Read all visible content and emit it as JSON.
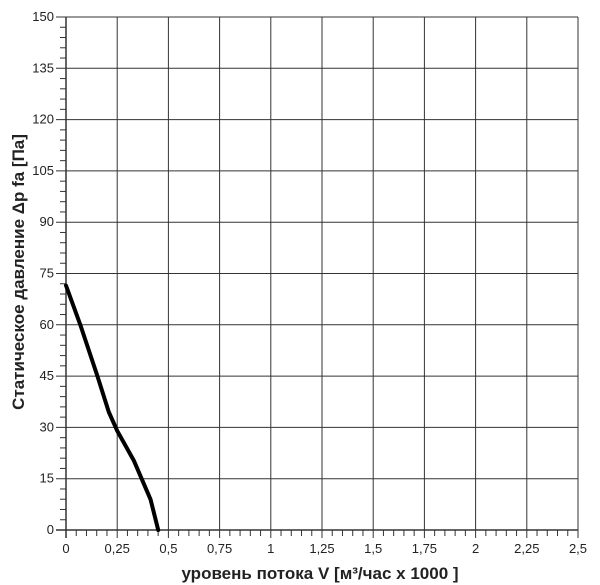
{
  "chart_data": {
    "type": "line",
    "title": "",
    "xlabel": "уровень потока  V [м³/час x 1000 ]",
    "ylabel": "Статическое давление  Δp fa [Па]",
    "xlim": [
      0,
      2.5
    ],
    "ylim": [
      0,
      150
    ],
    "xticks": [
      "0",
      "0,25",
      "0,5",
      "0,75",
      "1",
      "1,25",
      "1,5",
      "1,75",
      "2",
      "2,25",
      "2,5"
    ],
    "yticks": [
      "0",
      "15",
      "30",
      "45",
      "60",
      "75",
      "90",
      "105",
      "120",
      "135",
      "150"
    ],
    "grid": true,
    "series": [
      {
        "color": "#000000",
        "x": [
          0,
          0.07,
          0.152,
          0.209,
          0.25,
          0.332,
          0.413,
          0.45
        ],
        "y": [
          71.5,
          60,
          45.3,
          34.5,
          29,
          20.2,
          8.9,
          0
        ]
      }
    ]
  }
}
